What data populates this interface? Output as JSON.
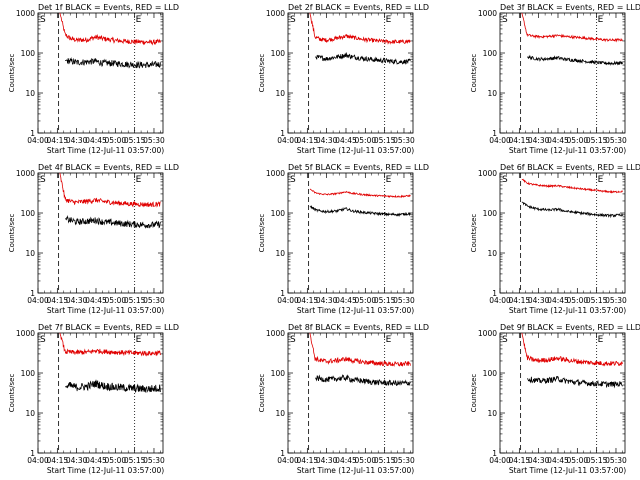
{
  "ylabel": "Counts/sec",
  "xlabel": "Start Time (12-Jul-11 03:57:00)",
  "marker_start": "S",
  "marker_end": "E",
  "y_tick_labels": [
    "1",
    "10",
    "100",
    "1000"
  ],
  "x_tick_labels": [
    "04:00",
    "04:15",
    "04:30",
    "04:45",
    "05:00",
    "05:15",
    "05:30"
  ],
  "colors": {
    "events": "#000000",
    "lld": "#e00000",
    "axes": "#000000"
  },
  "chart_data": [
    {
      "type": "line",
      "title": "Det 1f BLACK = Events, RED = LLD",
      "xlabel": "Start Time (12-Jul-11 03:57:00)",
      "ylabel": "Counts/sec",
      "ylim": [
        1,
        1000
      ],
      "yscale": "log",
      "xlim": [
        "04:00",
        "05:37"
      ],
      "start_marker": "04:16",
      "end_marker": "05:15",
      "series": [
        {
          "name": "LLD",
          "x": [
            "04:17",
            "04:21",
            "04:25",
            "04:30",
            "04:38",
            "04:45",
            "04:50",
            "05:00",
            "05:10",
            "05:20",
            "05:27",
            "05:35"
          ],
          "values": [
            1000,
            290,
            230,
            210,
            215,
            250,
            230,
            205,
            195,
            190,
            185,
            190
          ],
          "noise": 0.06
        },
        {
          "name": "Events",
          "x": [
            "04:21",
            "04:25",
            "04:30",
            "04:38",
            "04:45",
            "04:50",
            "05:00",
            "05:10",
            "05:20",
            "05:27",
            "05:35"
          ],
          "values": [
            65,
            62,
            58,
            60,
            62,
            56,
            55,
            52,
            50,
            50,
            52
          ],
          "noise": 0.08
        }
      ]
    },
    {
      "type": "line",
      "title": "Det 2f BLACK = Events, RED = LLD",
      "xlabel": "Start Time (12-Jul-11 03:57:00)",
      "ylabel": "Counts/sec",
      "ylim": [
        1,
        1000
      ],
      "yscale": "log",
      "xlim": [
        "04:00",
        "05:37"
      ],
      "start_marker": "04:16",
      "end_marker": "05:15",
      "series": [
        {
          "name": "LLD",
          "x": [
            "04:17",
            "04:21",
            "04:25",
            "04:30",
            "04:38",
            "04:45",
            "04:50",
            "05:00",
            "05:10",
            "05:20",
            "05:27",
            "05:35"
          ],
          "values": [
            1000,
            250,
            220,
            210,
            235,
            265,
            245,
            215,
            200,
            190,
            190,
            195
          ],
          "noise": 0.05
        },
        {
          "name": "Events",
          "x": [
            "04:21",
            "04:25",
            "04:30",
            "04:38",
            "04:45",
            "04:50",
            "05:00",
            "05:10",
            "05:20",
            "05:27",
            "05:35"
          ],
          "values": [
            80,
            76,
            72,
            80,
            88,
            80,
            72,
            66,
            62,
            60,
            62
          ],
          "noise": 0.06
        }
      ]
    },
    {
      "type": "line",
      "title": "Det 3f BLACK = Events, RED = LLD",
      "xlabel": "Start Time (12-Jul-11 03:57:00)",
      "ylabel": "Counts/sec",
      "ylim": [
        1,
        1000
      ],
      "yscale": "log",
      "xlim": [
        "04:00",
        "05:37"
      ],
      "start_marker": "04:16",
      "end_marker": "05:15",
      "series": [
        {
          "name": "LLD",
          "x": [
            "04:17",
            "04:21",
            "04:25",
            "04:30",
            "04:38",
            "04:45",
            "04:50",
            "05:00",
            "05:10",
            "05:20",
            "05:27",
            "05:35"
          ],
          "values": [
            1000,
            285,
            265,
            255,
            260,
            275,
            260,
            245,
            230,
            215,
            210,
            215
          ],
          "noise": 0.03
        },
        {
          "name": "Events",
          "x": [
            "04:21",
            "04:25",
            "04:30",
            "04:38",
            "04:45",
            "04:50",
            "05:00",
            "05:10",
            "05:20",
            "05:27",
            "05:35"
          ],
          "values": [
            80,
            75,
            70,
            72,
            76,
            70,
            65,
            60,
            56,
            55,
            57
          ],
          "noise": 0.04
        }
      ]
    },
    {
      "type": "line",
      "title": "Det 4f BLACK = Events, RED = LLD",
      "xlabel": "Start Time (12-Jul-11 03:57:00)",
      "ylabel": "Counts/sec",
      "ylim": [
        1,
        1000
      ],
      "yscale": "log",
      "xlim": [
        "04:00",
        "05:37"
      ],
      "start_marker": "04:16",
      "end_marker": "05:15",
      "series": [
        {
          "name": "LLD",
          "x": [
            "04:17",
            "04:21",
            "04:25",
            "04:30",
            "04:38",
            "04:45",
            "04:50",
            "05:00",
            "05:10",
            "05:20",
            "05:27",
            "05:35"
          ],
          "values": [
            1000,
            220,
            195,
            185,
            195,
            210,
            195,
            180,
            170,
            165,
            162,
            168
          ],
          "noise": 0.06
        },
        {
          "name": "Events",
          "x": [
            "04:21",
            "04:25",
            "04:30",
            "04:38",
            "04:45",
            "04:50",
            "05:00",
            "05:10",
            "05:20",
            "05:27",
            "05:35"
          ],
          "values": [
            72,
            66,
            60,
            62,
            66,
            60,
            56,
            53,
            51,
            50,
            52
          ],
          "noise": 0.08
        }
      ]
    },
    {
      "type": "line",
      "title": "Det 5f BLACK = Events, RED = LLD",
      "xlabel": "Start Time (12-Jul-11 03:57:00)",
      "ylabel": "Counts/sec",
      "ylim": [
        1,
        1000
      ],
      "yscale": "log",
      "xlim": [
        "04:00",
        "05:37"
      ],
      "start_marker": "04:16",
      "end_marker": "05:15",
      "series": [
        {
          "name": "LLD",
          "x": [
            "04:17",
            "04:21",
            "04:25",
            "04:30",
            "04:38",
            "04:45",
            "04:50",
            "05:00",
            "05:10",
            "05:20",
            "05:27",
            "05:35"
          ],
          "values": [
            400,
            320,
            300,
            290,
            305,
            340,
            310,
            285,
            270,
            262,
            258,
            270
          ],
          "noise": 0.02
        },
        {
          "name": "Events",
          "x": [
            "04:17",
            "04:21",
            "04:25",
            "04:30",
            "04:38",
            "04:45",
            "04:50",
            "05:00",
            "05:10",
            "05:20",
            "05:27",
            "05:35"
          ],
          "values": [
            150,
            120,
            112,
            108,
            112,
            128,
            112,
            102,
            96,
            92,
            92,
            96
          ],
          "noise": 0.03
        }
      ]
    },
    {
      "type": "line",
      "title": "Det 6f BLACK = Events, RED = LLD",
      "xlabel": "Start Time (12-Jul-11 03:57:00)",
      "ylabel": "Counts/sec",
      "ylim": [
        1,
        1000
      ],
      "yscale": "log",
      "xlim": [
        "04:00",
        "05:37"
      ],
      "start_marker": "04:16",
      "end_marker": "05:15",
      "series": [
        {
          "name": "LLD",
          "x": [
            "04:17",
            "04:21",
            "04:25",
            "04:30",
            "04:38",
            "04:45",
            "04:50",
            "05:00",
            "05:10",
            "05:20",
            "05:27",
            "05:35"
          ],
          "values": [
            700,
            560,
            520,
            490,
            470,
            480,
            450,
            410,
            380,
            350,
            335,
            345
          ],
          "noise": 0.02
        },
        {
          "name": "Events",
          "x": [
            "04:17",
            "04:21",
            "04:25",
            "04:30",
            "04:38",
            "04:45",
            "04:50",
            "05:00",
            "05:10",
            "05:20",
            "05:27",
            "05:35"
          ],
          "values": [
            190,
            150,
            135,
            125,
            118,
            125,
            112,
            102,
            94,
            88,
            86,
            90
          ],
          "noise": 0.03
        }
      ]
    },
    {
      "type": "line",
      "title": "Det 7f BLACK = Events, RED = LLD",
      "xlabel": "Start Time (12-Jul-11 03:57:00)",
      "ylabel": "Counts/sec",
      "ylim": [
        1,
        1000
      ],
      "yscale": "log",
      "xlim": [
        "04:00",
        "05:37"
      ],
      "start_marker": "04:16",
      "end_marker": "05:15",
      "series": [
        {
          "name": "LLD",
          "x": [
            "04:17",
            "04:21",
            "04:25",
            "04:30",
            "04:38",
            "04:45",
            "04:50",
            "05:00",
            "05:10",
            "05:20",
            "05:27",
            "05:35"
          ],
          "values": [
            1000,
            340,
            330,
            325,
            330,
            360,
            345,
            330,
            320,
            315,
            310,
            320
          ],
          "noise": 0.06
        },
        {
          "name": "Events",
          "x": [
            "04:21",
            "04:25",
            "04:30",
            "04:38",
            "04:45",
            "04:50",
            "05:00",
            "05:10",
            "05:20",
            "05:27",
            "05:35"
          ],
          "values": [
            45,
            48,
            44,
            46,
            55,
            48,
            44,
            42,
            40,
            40,
            42
          ],
          "noise": 0.1
        }
      ]
    },
    {
      "type": "line",
      "title": "Det 8f BLACK = Events, RED = LLD",
      "xlabel": "Start Time (12-Jul-11 03:57:00)",
      "ylabel": "Counts/sec",
      "ylim": [
        1,
        1000
      ],
      "yscale": "log",
      "xlim": [
        "04:00",
        "05:37"
      ],
      "start_marker": "04:16",
      "end_marker": "05:15",
      "series": [
        {
          "name": "LLD",
          "x": [
            "04:17",
            "04:21",
            "04:25",
            "04:30",
            "04:38",
            "04:45",
            "04:50",
            "05:00",
            "05:10",
            "05:20",
            "05:27",
            "05:35"
          ],
          "values": [
            1000,
            230,
            205,
            195,
            205,
            225,
            205,
            185,
            175,
            168,
            165,
            172
          ],
          "noise": 0.06
        },
        {
          "name": "Events",
          "x": [
            "04:21",
            "04:25",
            "04:30",
            "04:38",
            "04:45",
            "04:50",
            "05:00",
            "05:10",
            "05:20",
            "05:27",
            "05:35"
          ],
          "values": [
            75,
            72,
            68,
            72,
            76,
            68,
            62,
            58,
            56,
            55,
            57
          ],
          "noise": 0.07
        }
      ]
    },
    {
      "type": "line",
      "title": "Det 9f BLACK = Events, RED = LLD",
      "xlabel": "Start Time (12-Jul-11 03:57:00)",
      "ylabel": "Counts/sec",
      "ylim": [
        1,
        1000
      ],
      "yscale": "log",
      "xlim": [
        "04:00",
        "05:37"
      ],
      "start_marker": "04:16",
      "end_marker": "05:15",
      "series": [
        {
          "name": "LLD",
          "x": [
            "04:17",
            "04:21",
            "04:25",
            "04:30",
            "04:38",
            "04:45",
            "04:50",
            "05:00",
            "05:10",
            "05:20",
            "05:27",
            "05:35"
          ],
          "values": [
            1000,
            240,
            215,
            205,
            215,
            235,
            215,
            195,
            182,
            175,
            172,
            178
          ],
          "noise": 0.06
        },
        {
          "name": "Events",
          "x": [
            "04:21",
            "04:25",
            "04:30",
            "04:38",
            "04:45",
            "04:50",
            "05:00",
            "05:10",
            "05:20",
            "05:27",
            "05:35"
          ],
          "values": [
            72,
            68,
            63,
            66,
            72,
            64,
            58,
            55,
            53,
            52,
            54
          ],
          "noise": 0.07
        }
      ]
    }
  ]
}
